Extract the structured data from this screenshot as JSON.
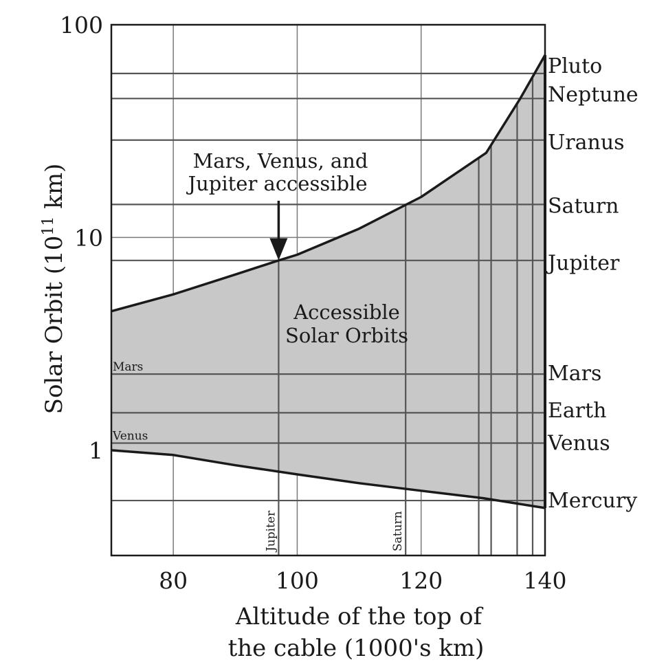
{
  "chart_data": {
    "type": "area",
    "title": "",
    "xlabel_lines": [
      "Altitude of the top of",
      "the cable (1000's km)"
    ],
    "ylabel_main": "Solar Orbit (10",
    "ylabel_sup": "11",
    "ylabel_end": " km)",
    "xlim": [
      70,
      140
    ],
    "ylim": [
      0.32,
      100
    ],
    "y_scale": "log",
    "grid": true,
    "x_ticks": [
      80,
      100,
      120,
      140
    ],
    "x_tick_labels": [
      "80",
      "100",
      "120",
      "140"
    ],
    "y_ticks": [
      1,
      10,
      100
    ],
    "y_tick_labels": [
      "1",
      "10",
      "100"
    ],
    "upper_boundary": {
      "x": [
        70,
        80,
        90,
        97,
        100,
        110,
        120,
        130.5,
        136,
        140
      ],
      "y": [
        4.5,
        5.4,
        6.7,
        7.8,
        8.3,
        11.0,
        15.5,
        25.0,
        45,
        72
      ]
    },
    "lower_boundary": {
      "x": [
        70,
        80,
        90,
        100,
        110,
        120,
        130,
        140
      ],
      "y": [
        1.0,
        0.95,
        0.85,
        0.77,
        0.7,
        0.645,
        0.595,
        0.535
      ]
    },
    "planets": [
      {
        "name": "Pluto",
        "orbit": 59.0,
        "altitude": 138.0
      },
      {
        "name": "Neptune",
        "orbit": 45.0,
        "altitude": 135.5
      },
      {
        "name": "Uranus",
        "orbit": 28.7,
        "altitude": 131.3
      },
      {
        "name": "Saturn",
        "orbit": 14.3,
        "altitude": 117.5
      },
      {
        "name": "Jupiter",
        "orbit": 7.8,
        "altitude": 97.0
      },
      {
        "name": "Mars",
        "orbit": 2.28,
        "altitude": 70.0
      },
      {
        "name": "Earth",
        "orbit": 1.5,
        "altitude": null
      },
      {
        "name": "Venus",
        "orbit": 1.08,
        "altitude": 70.0
      },
      {
        "name": "Mercury",
        "orbit": 0.58,
        "altitude": 129.3
      }
    ],
    "planet_label_orbits": {
      "Pluto": 64,
      "Neptune": 47,
      "Uranus": 28,
      "Saturn": 14.1,
      "Jupiter": 7.6,
      "Mars": 2.3,
      "Earth": 1.54,
      "Venus": 1.08,
      "Mercury": 0.58
    },
    "left_labels": [
      {
        "text": "Mars",
        "orbit": 2.28
      },
      {
        "text": "Venus",
        "orbit": 1.08
      }
    ],
    "bottom_labels": [
      {
        "text": "Jupiter",
        "altitude": 97.0
      },
      {
        "text": "Saturn",
        "altitude": 117.5
      }
    ],
    "annotation": {
      "lines": [
        "Mars, Venus, and",
        "Jupiter accessible"
      ],
      "arrow_x": 97,
      "arrow_tip_orbit": 7.7
    },
    "region_label": {
      "lines": [
        "Accessible",
        "Solar Orbits"
      ],
      "x": 108,
      "orbit": 3.9
    },
    "colors": {
      "region_fill": "#c8c8c8",
      "line": "#1a1a1a",
      "grid": "#7a7a7a"
    }
  }
}
